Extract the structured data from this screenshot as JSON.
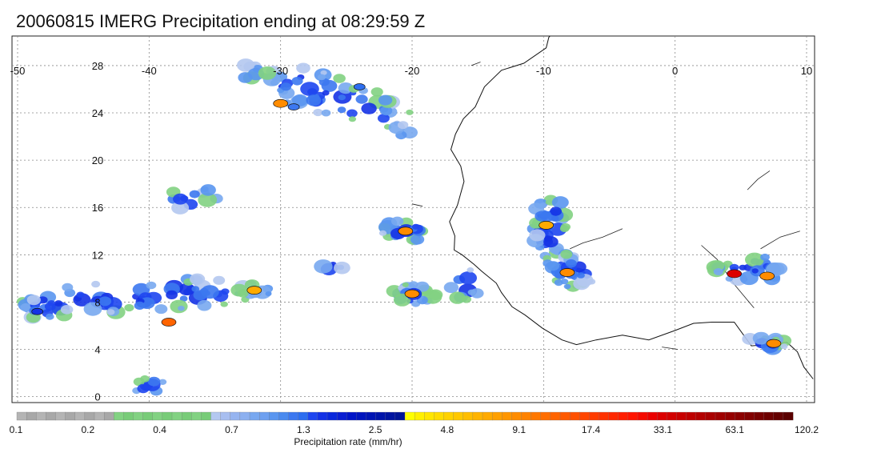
{
  "title": "20060815 IMERG Precipitation ending at 08:29:59 Z",
  "map": {
    "lon_range": [
      -50,
      10
    ],
    "lat_range": [
      -0.5,
      30.5
    ],
    "lon_ticks": [
      "-50",
      "-40",
      "-30",
      "-20",
      "-10",
      "0",
      "10"
    ],
    "lat_ticks": [
      "28",
      "24",
      "20",
      "16",
      "12",
      "8",
      "4",
      "0"
    ],
    "gridlines": "dotted"
  },
  "colorbar": {
    "label": "Precipitation rate (mm/hr)",
    "tick_labels": [
      "0.1",
      "0.2",
      "0.4",
      "0.7",
      "1.3",
      "2.5",
      "4.8",
      "9.1",
      "17.4",
      "33.1",
      "63.1",
      "120.2"
    ],
    "colors": [
      "#b4b4b4",
      "#a8a8a8",
      "#b4b4b4",
      "#a8a8a8",
      "#b4b4b4",
      "#a8a8a8",
      "#b4b4b4",
      "#a8a8a8",
      "#b4b4b4",
      "#a8a8a8",
      "#82d282",
      "#78cc78",
      "#82d282",
      "#78cc78",
      "#82d282",
      "#78cc78",
      "#82d282",
      "#78cc78",
      "#82d282",
      "#78cc78",
      "#b4c8f0",
      "#a8bef0",
      "#96b4f0",
      "#8cb0f0",
      "#78a8f0",
      "#6ea0f0",
      "#5a96f0",
      "#4a8aef",
      "#3c78f0",
      "#2d6ef0",
      "#1e46f0",
      "#1432e6",
      "#0a28dc",
      "#0a1ed2",
      "#0014c8",
      "#0014be",
      "#0014b4",
      "#0014aa",
      "#0014a0",
      "#001496",
      "#ffff00",
      "#fff000",
      "#ffe600",
      "#ffdc00",
      "#ffd200",
      "#ffc800",
      "#ffbe00",
      "#ffb400",
      "#ffaa00",
      "#ffa000",
      "#ff9600",
      "#ff8c00",
      "#ff8200",
      "#ff7800",
      "#ff6e00",
      "#ff6400",
      "#ff5a00",
      "#ff5000",
      "#ff4600",
      "#ff3c00",
      "#ff3200",
      "#ff2800",
      "#ff1e00",
      "#ff1400",
      "#f50a00",
      "#eb0000",
      "#dc0000",
      "#d20000",
      "#c80000",
      "#be0000",
      "#b40000",
      "#aa0000",
      "#a00000",
      "#960000",
      "#8c0000",
      "#820000",
      "#780000",
      "#6e0000",
      "#640000",
      "#5a0000"
    ]
  },
  "precip_cells": [
    {
      "lon": -29,
      "lat": 24.5,
      "level": "moderate",
      "color": "#3c78f0"
    },
    {
      "lon": -24,
      "lat": 26.2,
      "level": "moderate",
      "color": "#2d6ef0"
    },
    {
      "lon": -30,
      "lat": 24.8,
      "level": "heavy",
      "color": "#ff8c00"
    },
    {
      "lon": -20.5,
      "lat": 14.0,
      "level": "heavy",
      "color": "#ff8c00"
    },
    {
      "lon": -20.0,
      "lat": 8.7,
      "level": "heavy",
      "color": "#ff8c00"
    },
    {
      "lon": -9.8,
      "lat": 14.5,
      "level": "heavy",
      "color": "#ffaa00"
    },
    {
      "lon": -8.2,
      "lat": 10.5,
      "level": "heavy",
      "color": "#ff8c00"
    },
    {
      "lon": 4.5,
      "lat": 10.4,
      "level": "very heavy",
      "color": "#dc0000"
    },
    {
      "lon": 7.0,
      "lat": 10.2,
      "level": "heavy",
      "color": "#ff8c00"
    },
    {
      "lon": 7.5,
      "lat": 4.5,
      "level": "heavy",
      "color": "#ff8c00"
    },
    {
      "lon": -38.5,
      "lat": 6.3,
      "level": "heavy",
      "color": "#ff6400"
    },
    {
      "lon": -32,
      "lat": 9.0,
      "level": "heavy",
      "color": "#ffaa00"
    },
    {
      "lon": -48.5,
      "lat": 7.2,
      "level": "moderate",
      "color": "#1432e6"
    }
  ]
}
